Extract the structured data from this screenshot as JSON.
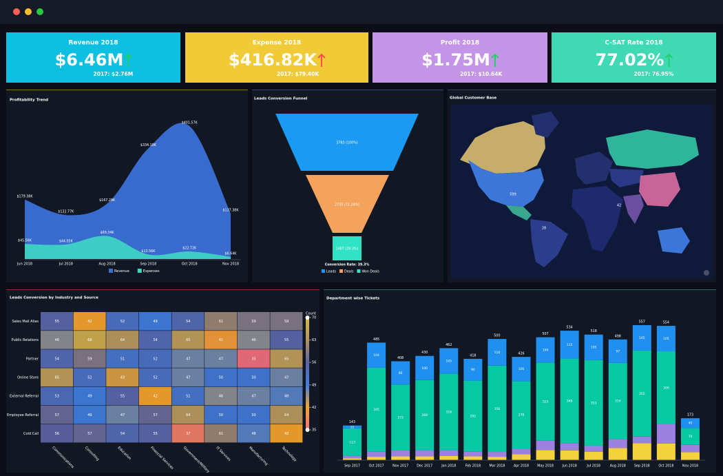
{
  "kpis": [
    {
      "title": "Revenue 2018",
      "value": "$6.46M",
      "previous": "2017: $2.76M",
      "color": "#0dbfe0",
      "arrow_color": "#1fd06a"
    },
    {
      "title": "Expense 2018",
      "value": "$416.82K",
      "previous": "2017: $79.40K",
      "color": "#f1cb37",
      "arrow_color": "#ff4d4d"
    },
    {
      "title": "Profit 2018",
      "value": "$1.75M",
      "previous": "2017: $10.64K",
      "color": "#c495e6",
      "arrow_color": "#1fd06a"
    },
    {
      "title": "C-SAT Rate 2018",
      "value": "77.02%",
      "previous": "2017: 76.95%",
      "color": "#3fd9b3",
      "arrow_color": "#1fd06a"
    }
  ],
  "chart_data": [
    {
      "type": "area",
      "title": "Profitability Trend",
      "categories": [
        "Jun 2018",
        "Jul 2018",
        "Aug 2018",
        "Sep 2018",
        "Oct 2018",
        "Nov 2018"
      ],
      "series": [
        {
          "name": "Revenue",
          "color": "#3c6fd8",
          "values": [
            179.38,
            132.77,
            167.29,
            334.18,
            401.57,
            137.38
          ],
          "value_labels": [
            "$179.38K",
            "$132.77K",
            "$167.29K",
            "$334.18K",
            "$401.57K",
            "$137.38K"
          ]
        },
        {
          "name": "Expenses",
          "color": "#3fd8c4",
          "values": [
            45.56,
            44.05,
            69.34,
            13.56,
            22.72,
            6.64
          ],
          "value_labels": [
            "$45.56K",
            "$44.05K",
            "$69.34K",
            "$13.56K",
            "$22.72K",
            "$6.64K"
          ]
        }
      ]
    },
    {
      "type": "funnel",
      "title": "Leads Conversion Funnel",
      "categories": [
        "Leads",
        "Deals",
        "Won Deals"
      ],
      "values": [
        3783,
        2733,
        1487
      ],
      "value_labels": [
        "3783 (100%)",
        "2733 (72.24%)",
        "1487 (39.3%)"
      ],
      "colors": [
        "#1a9af2",
        "#f4a25c",
        "#2fe3c4"
      ],
      "annotation": "Conversion Rate: 39.3%"
    },
    {
      "type": "heatmap",
      "title": "Leads Conversion by Industry and Source",
      "categories": [
        "Communications",
        "Consulting",
        "Education",
        "Financial Services",
        "Government/Military",
        "IT Services",
        "Manufacturing",
        "Technology"
      ],
      "rows": [
        "Sales Mail Alias",
        "Public Relations",
        "Partner",
        "Online Store",
        "External Referral",
        "Employee Referral",
        "Cold Call"
      ],
      "values": [
        [
          55,
          42,
          52,
          49,
          54,
          61,
          59,
          59
        ],
        [
          46,
          68,
          64,
          54,
          65,
          41,
          46,
          55
        ],
        [
          54,
          59,
          51,
          52,
          47,
          47,
          35,
          65
        ],
        [
          65,
          52,
          43,
          52,
          47,
          50,
          50,
          47
        ],
        [
          53,
          49,
          55,
          42,
          51,
          46,
          47,
          48
        ],
        [
          57,
          49,
          47,
          57,
          64,
          50,
          50,
          64
        ],
        [
          56,
          57,
          54,
          55,
          37,
          61,
          48,
          42
        ]
      ],
      "colorbar": {
        "title": "Count",
        "ticks": [
          70,
          63,
          56,
          49,
          42,
          35
        ],
        "colors": [
          "#d8b84a",
          "#b49460",
          "#5e64a4",
          "#3f7ee0",
          "#f4a42c",
          "#f2707e"
        ]
      }
    },
    {
      "type": "bar",
      "stacked": true,
      "title": "Department wise Tickets",
      "categories": [
        "Sep 2017",
        "Oct 2017",
        "Nov 2017",
        "Dec 2017",
        "Jan 2018",
        "Feb 2018",
        "Mar 2018",
        "Apr 2018",
        "May 2018",
        "Jun 2018",
        "Jul 2018",
        "Aug 2018",
        "Sep 2018",
        "Oct 2018",
        "Nov 2018"
      ],
      "series": [
        {
          "color": "#f4d23c",
          "values": [
            8,
            14,
            16,
            16,
            18,
            16,
            14,
            24,
            42,
            40,
            35,
            50,
            70,
            69,
            33
          ]
        },
        {
          "color": "#9c80e2",
          "values": [
            10,
            22,
            24,
            25,
            23,
            20,
            20,
            24,
            38,
            30,
            25,
            37,
            27,
            80,
            30
          ]
        },
        {
          "color": "#06c9a4",
          "values": [
            113,
            345,
            272,
            289,
            316,
            292,
            356,
            278,
            323,
            349,
            353,
            314,
            355,
            300,
            70
          ],
          "labeled": true
        },
        {
          "color": "#1f8ff0",
          "values": [
            12,
            104,
            96,
            100,
            105,
            90,
            110,
            100,
            104,
            115,
            105,
            97,
            105,
            105,
            40
          ],
          "labeled": true
        }
      ],
      "totals": [
        143,
        485,
        408,
        430,
        462,
        418,
        500,
        426,
        507,
        534,
        518,
        498,
        557,
        554,
        173
      ]
    }
  ],
  "map": {
    "title": "Global Customer Base",
    "labels": [
      "599",
      "28",
      "42"
    ]
  }
}
